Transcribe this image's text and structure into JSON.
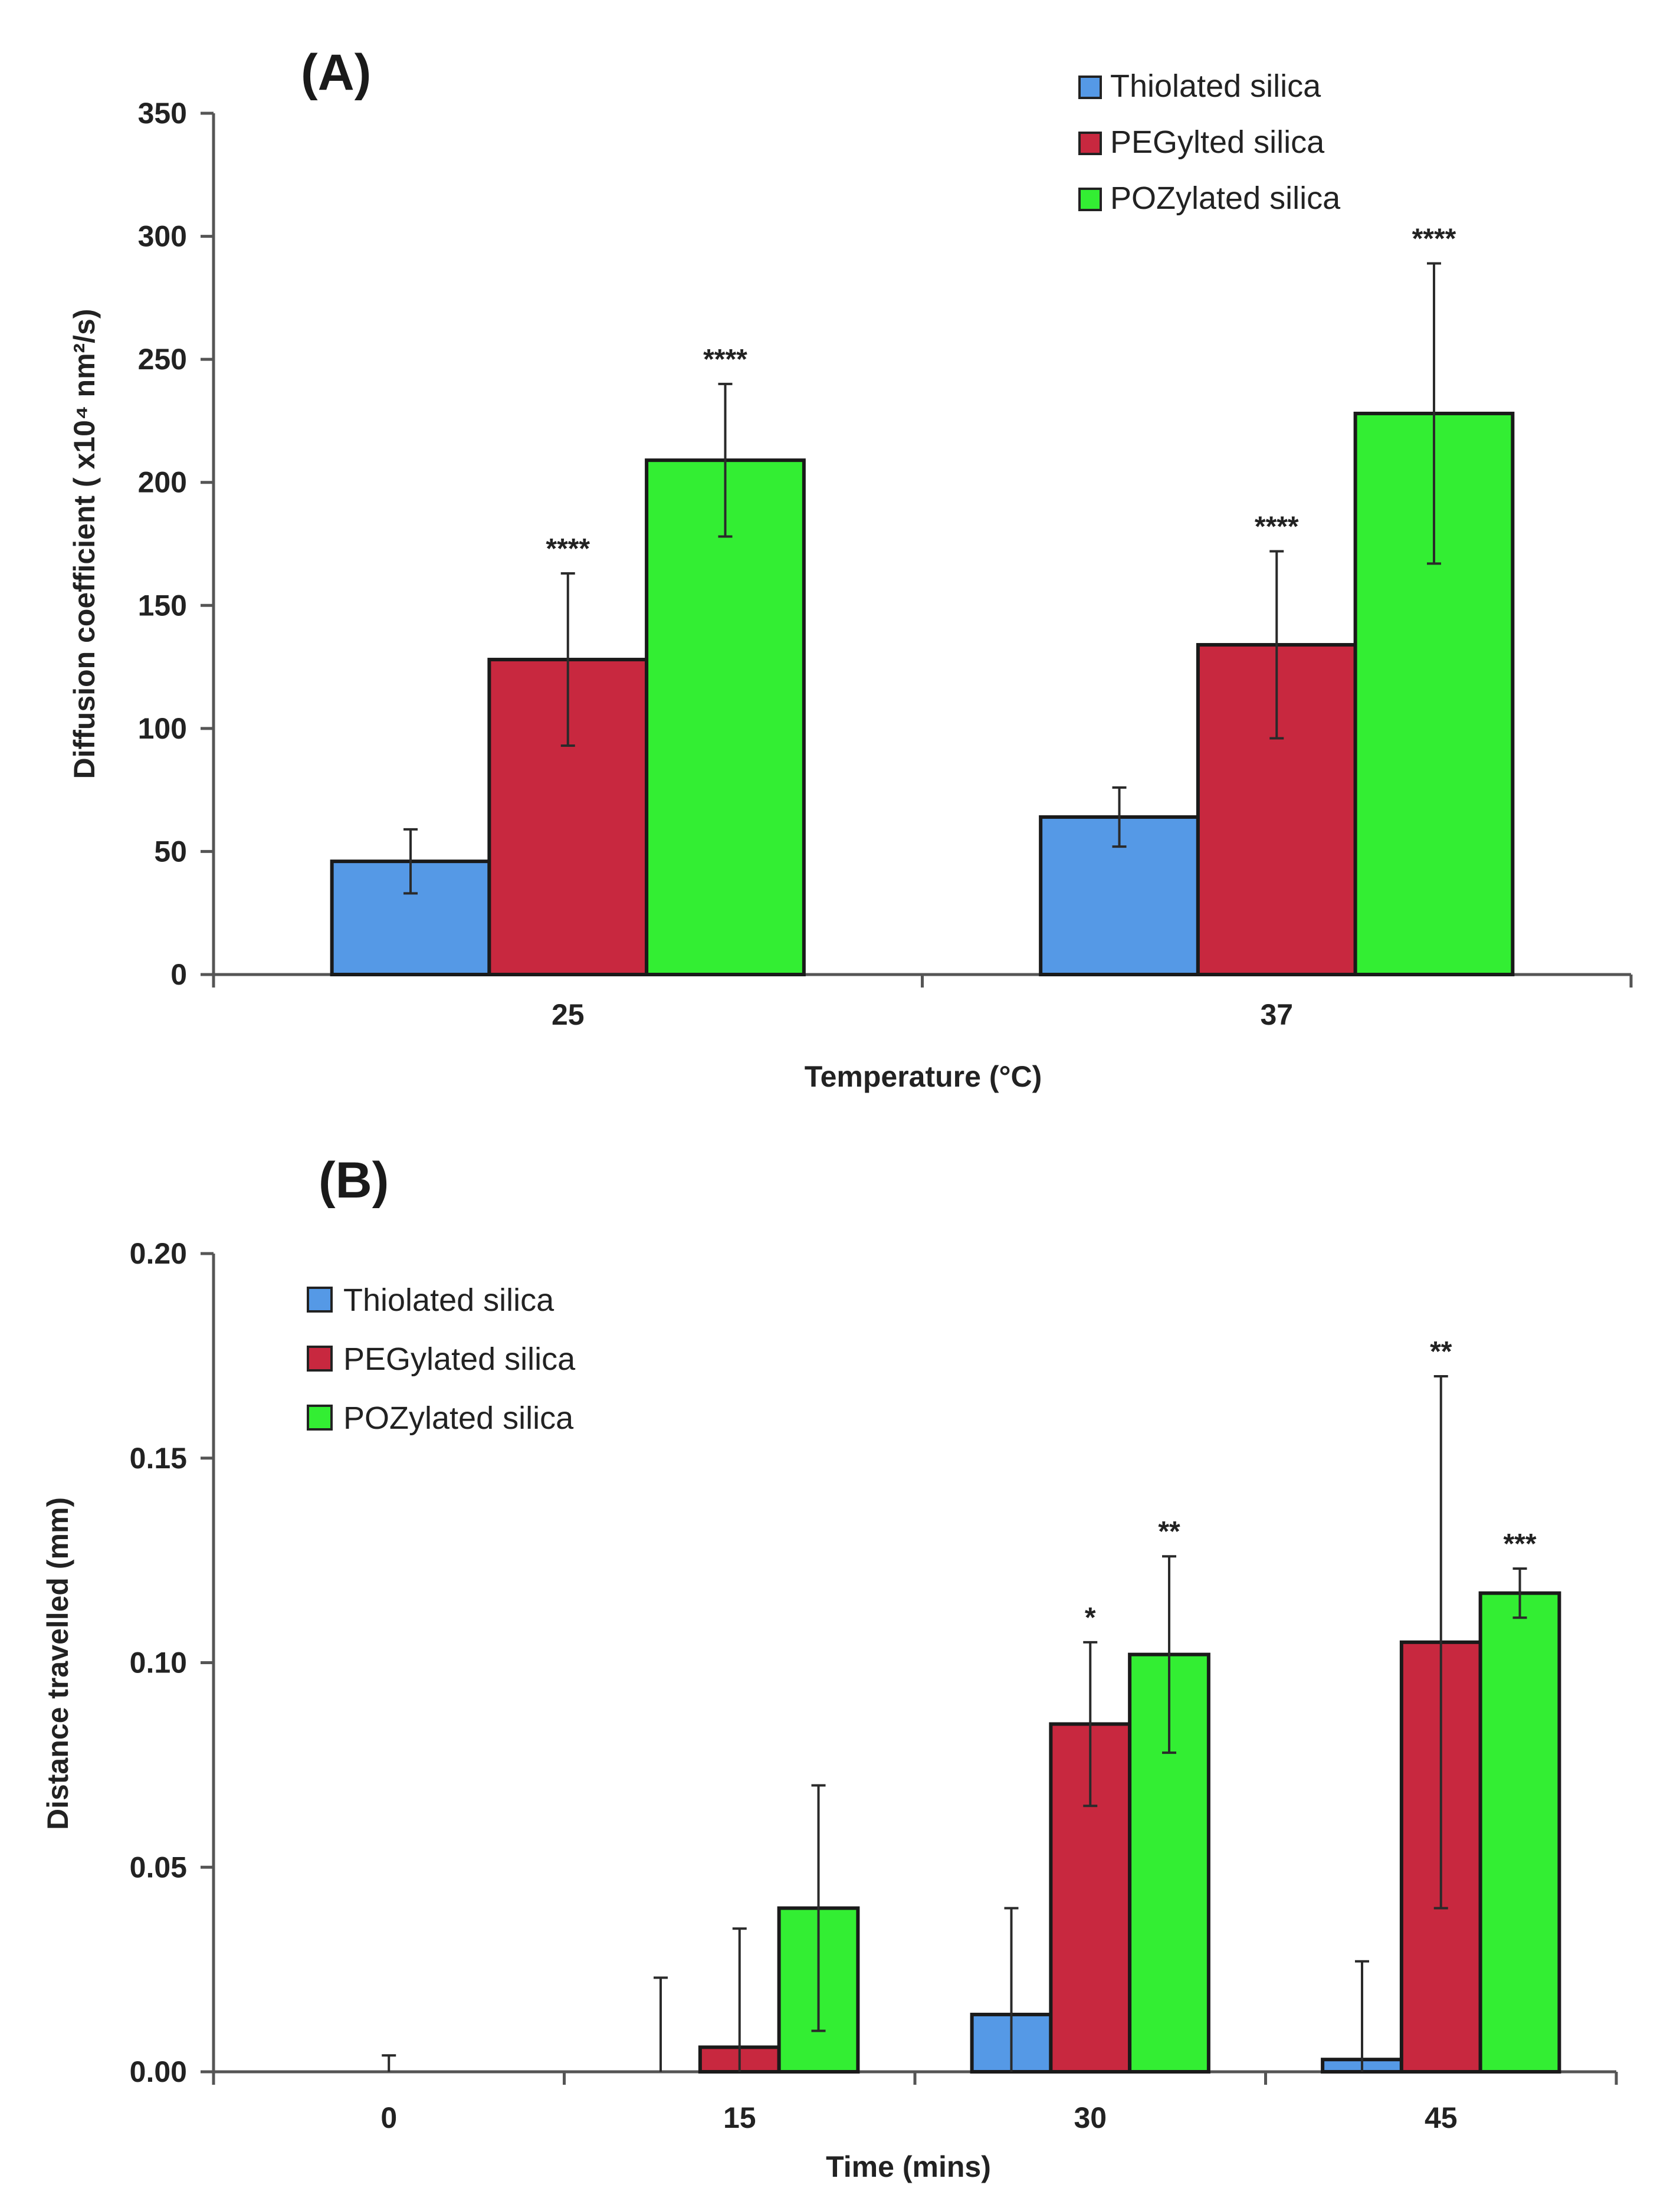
{
  "chart_data": [
    {
      "type": "bar",
      "panel_label": "(A)",
      "categories": [
        "25",
        "37"
      ],
      "xlabel": "Temperature (°C)",
      "ylabel": "Diffusion coefficient ( x10⁴ nm²/s)",
      "ylim": [
        0,
        350
      ],
      "yticks": [
        "0",
        "50",
        "100",
        "150",
        "200",
        "250",
        "300",
        "350"
      ],
      "legend_position": "top-right",
      "series": [
        {
          "name": "Thiolated silica",
          "color": "#5599e6",
          "values": [
            46,
            64
          ],
          "errors": [
            13,
            12
          ],
          "significance": [
            "",
            ""
          ]
        },
        {
          "name": "PEGylted silica",
          "color": "#c8283f",
          "values": [
            128,
            134
          ],
          "errors": [
            35,
            38
          ],
          "significance": [
            "****",
            "****"
          ]
        },
        {
          "name": "POZylated silica",
          "color": "#33ee33",
          "values": [
            209,
            228
          ],
          "errors": [
            31,
            61
          ],
          "significance": [
            "****",
            "****"
          ]
        }
      ]
    },
    {
      "type": "bar",
      "panel_label": "(B)",
      "categories": [
        "0",
        "15",
        "30",
        "45"
      ],
      "xlabel": "Time (mins)",
      "ylabel": "Distance travelled (mm)",
      "ylim": [
        0,
        0.2
      ],
      "yticks": [
        "0.00",
        "0.05",
        "0.10",
        "0.15",
        "0.20"
      ],
      "legend_position": "top-left",
      "series": [
        {
          "name": "Thiolated silica",
          "color": "#5599e6",
          "values": [
            0,
            0,
            0.014,
            0.003
          ],
          "errors": [
            0,
            0.023,
            0.026,
            0.024
          ],
          "significance": [
            "",
            "",
            "",
            ""
          ]
        },
        {
          "name": "PEGylated silica",
          "color": "#c8283f",
          "values": [
            0,
            0.006,
            0.085,
            0.105
          ],
          "errors": [
            0.004,
            0.029,
            0.02,
            0.065
          ],
          "significance": [
            "",
            "",
            "*",
            "**"
          ]
        },
        {
          "name": "POZylated silica",
          "color": "#33ee33",
          "values": [
            0,
            0.04,
            0.102,
            0.117
          ],
          "errors": [
            0,
            0.03,
            0.024,
            0.006
          ],
          "significance": [
            "",
            "",
            "**",
            "***"
          ]
        }
      ]
    }
  ]
}
